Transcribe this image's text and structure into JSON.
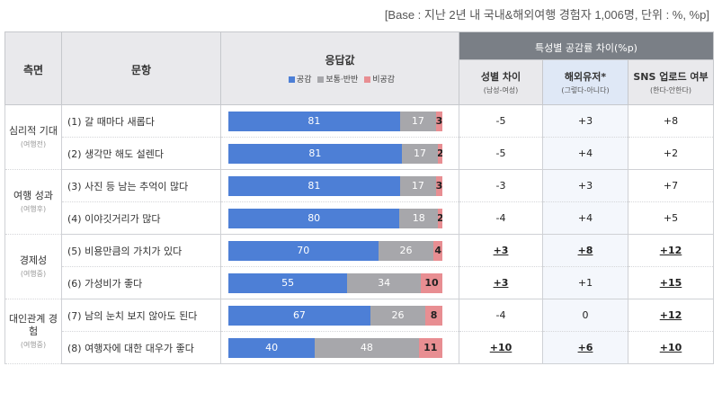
{
  "base_note": "[Base : 지난 2년 내 국내&해외여행 경험자 1,006명, 단위 : %, %p]",
  "header": {
    "dimension": "측면",
    "item": "문항",
    "response": "응답값",
    "diff_group": "특성별 공감률 차이(%p)",
    "legend": [
      {
        "label": "공감",
        "color": "#4d7fd6"
      },
      {
        "label": "보통·반반",
        "color": "#a7a7ab"
      },
      {
        "label": "비공감",
        "color": "#e88e92"
      }
    ],
    "diff_cols": [
      {
        "title": "성별 차이",
        "note": "(남성-여성)"
      },
      {
        "title": "해외유저*",
        "note": "(그렇다-아니다)"
      },
      {
        "title": "SNS 업로드 여부",
        "note": "(한다-안한다)"
      }
    ]
  },
  "groups": [
    {
      "name": "심리적 기대",
      "note": "(여행전)"
    },
    {
      "name": "여행 성과",
      "note": "(여행후)"
    },
    {
      "name": "경제성",
      "note": "(여행중)"
    },
    {
      "name": "대인관계 경험",
      "note": "(여행중)"
    }
  ],
  "rows": [
    {
      "label": "(1) 갈 때마다 새롭다",
      "gender": "-5",
      "overseas": "+3",
      "sns": "+8"
    },
    {
      "label": "(2) 생각만 해도 설렌다",
      "gender": "-5",
      "overseas": "+4",
      "sns": "+2"
    },
    {
      "label": "(3) 사진 등 남는 추억이 많다",
      "gender": "-3",
      "overseas": "+3",
      "sns": "+7"
    },
    {
      "label": "(4) 이야깃거리가 많다",
      "gender": "-4",
      "overseas": "+4",
      "sns": "+5"
    },
    {
      "label": "(5) 비용만큼의 가치가 있다",
      "gender": "+3",
      "overseas": "+8",
      "sns": "+12"
    },
    {
      "label": "(6) 가성비가 좋다",
      "gender": "+3",
      "overseas": "+1",
      "sns": "+15"
    },
    {
      "label": "(7) 남의 눈치 보지 않아도 된다",
      "gender": "-4",
      "overseas": "0",
      "sns": "+12"
    },
    {
      "label": "(8) 여행자에 대한 대우가 좋다",
      "gender": "+10",
      "overseas": "+6",
      "sns": "+10"
    }
  ],
  "chart_data": {
    "type": "bar",
    "stacked": true,
    "categories": [
      "(1) 갈 때마다 새롭다",
      "(2) 생각만 해도 설렌다",
      "(3) 사진 등 남는 추억이 많다",
      "(4) 이야깃거리가 많다",
      "(5) 비용만큼의 가치가 있다",
      "(6) 가성비가 좋다",
      "(7) 남의 눈치 보지 않아도 된다",
      "(8) 여행자에 대한 대우가 좋다"
    ],
    "series": [
      {
        "name": "공감",
        "color": "#4d7fd6",
        "values": [
          81,
          81,
          81,
          80,
          70,
          55,
          67,
          40
        ]
      },
      {
        "name": "보통·반반",
        "color": "#a7a7ab",
        "values": [
          17,
          17,
          17,
          18,
          26,
          34,
          26,
          48
        ]
      },
      {
        "name": "비공감",
        "color": "#e88e92",
        "values": [
          3,
          2,
          3,
          2,
          4,
          10,
          8,
          11
        ]
      }
    ],
    "xlim": [
      0,
      100
    ]
  },
  "underlined": {
    "gender": [
      4,
      5,
      7
    ],
    "overseas": [
      4,
      7
    ],
    "sns": [
      4,
      5,
      6,
      7
    ]
  }
}
